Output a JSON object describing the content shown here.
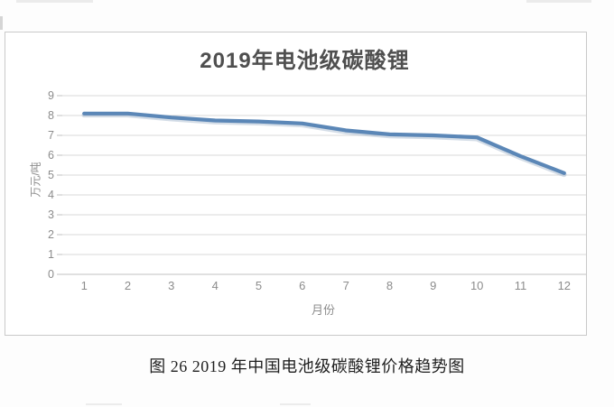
{
  "chart_data": {
    "type": "line",
    "title": "2019年电池级碳酸锂",
    "xlabel": "月份",
    "ylabel": "万元/吨",
    "categories": [
      "1",
      "2",
      "3",
      "4",
      "5",
      "6",
      "7",
      "8",
      "9",
      "10",
      "11",
      "12"
    ],
    "values": [
      8.1,
      8.1,
      7.9,
      7.75,
      7.7,
      7.6,
      7.25,
      7.05,
      7.0,
      6.9,
      5.95,
      5.1
    ],
    "ylim": [
      0,
      9
    ],
    "ytick_step": 1,
    "grid": true,
    "legend": "none",
    "line_color": "#5b87b7"
  },
  "caption": "图 26 2019 年中国电池级碳酸锂价格趋势图",
  "colors": {
    "title_text": "#4f4f4f",
    "axis_text": "#8c8c8c",
    "gridline": "#dadada",
    "axis_line": "#c2c2c2",
    "frame_border": "#c9c9c9",
    "caption_text": "#1f1f1f",
    "line_shadow": "#93a9c2"
  }
}
